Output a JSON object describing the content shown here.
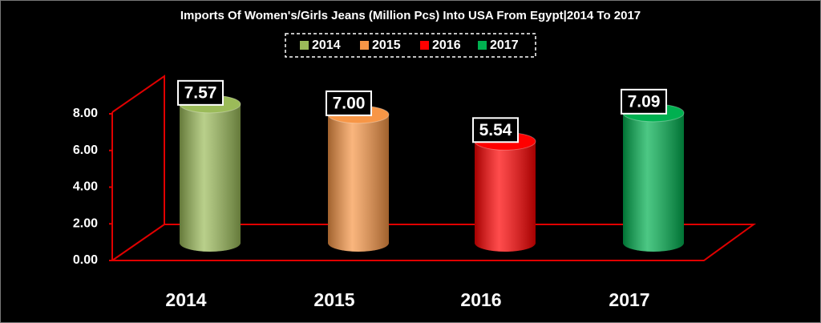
{
  "chart_data": {
    "type": "cylinder",
    "title": "Imports Of Women's/Girls Jeans (Million Pcs) Into USA From Egypt|2014 To 2017",
    "categories": [
      "2014",
      "2015",
      "2016",
      "2017"
    ],
    "values": [
      7.57,
      7.0,
      5.54,
      7.09
    ],
    "value_labels": [
      "7.57",
      "7.00",
      "5.54",
      "7.09"
    ],
    "colors": [
      "#9bbb59",
      "#f79646",
      "#ff0000",
      "#00b050"
    ],
    "ylim": [
      0,
      8
    ],
    "yticks": [
      {
        "value": 0,
        "label": "0.00"
      },
      {
        "value": 2,
        "label": "2.00"
      },
      {
        "value": 4,
        "label": "4.00"
      },
      {
        "value": 6,
        "label": "6.00"
      },
      {
        "value": 8,
        "label": "8.00"
      }
    ],
    "legend": true
  }
}
